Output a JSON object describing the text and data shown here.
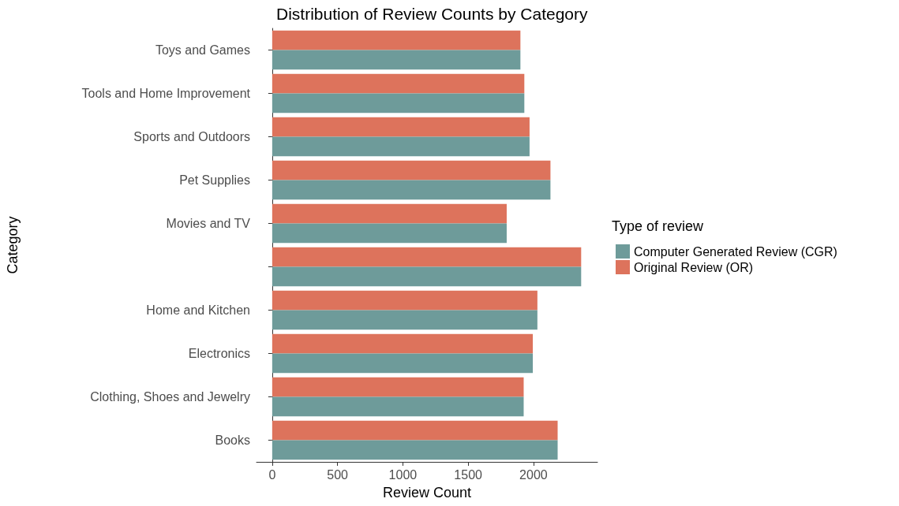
{
  "chart_data": {
    "type": "bar",
    "orientation": "horizontal",
    "title": "Distribution of Review Counts by Category",
    "xlabel": "Review Count",
    "ylabel": "Category",
    "legend_title": "Type of review",
    "categories": [
      "Toys and Games",
      "Tools and Home Improvement",
      "Sports and Outdoors",
      "Pet Supplies",
      "Movies and TV",
      null,
      "Home and Kitchen",
      "Electronics",
      "Clothing, Shoes and Jewelry",
      "Books"
    ],
    "series": [
      {
        "name": "Computer Generated Review (CGR)",
        "color": "#6e9b9a",
        "values": [
          1900,
          1930,
          1970,
          2130,
          1795,
          2365,
          2030,
          1995,
          1925,
          2185
        ]
      },
      {
        "name": "Original Review (OR)",
        "color": "#dd735c",
        "values": [
          1900,
          1930,
          1970,
          2130,
          1795,
          2365,
          2030,
          1995,
          1925,
          2185
        ]
      }
    ],
    "xlim": [
      -120,
      2490
    ],
    "xticks": [
      0,
      500,
      1000,
      1500,
      2000
    ],
    "grid": false,
    "legend": "right"
  }
}
